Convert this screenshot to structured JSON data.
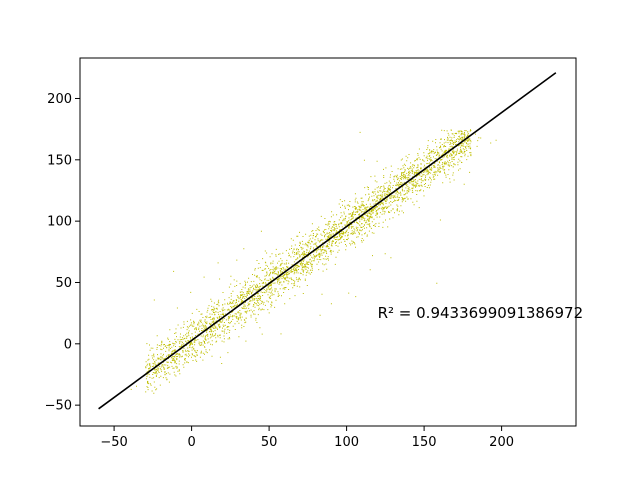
{
  "chart_data": {
    "type": "scatter",
    "title": "",
    "xlabel": "",
    "ylabel": "",
    "xlim": [
      -72,
      248
    ],
    "ylim": [
      -67,
      233
    ],
    "xticks": [
      -50,
      0,
      50,
      100,
      150,
      200
    ],
    "yticks": [
      -50,
      0,
      50,
      100,
      150,
      200
    ],
    "xtick_labels": [
      "−50",
      "0",
      "50",
      "100",
      "150",
      "200"
    ],
    "ytick_labels": [
      "−50",
      "0",
      "50",
      "100",
      "150",
      "200"
    ],
    "grid": false,
    "colors": {
      "points": "#bfbf00",
      "fit_line": "#000000"
    },
    "series": [
      {
        "kind": "scatter",
        "description": "dense cloud of small points along the diagonal",
        "x_range": [
          -40,
          200
        ],
        "y_range": [
          -40,
          175
        ],
        "approx_points": 30000
      },
      {
        "kind": "line",
        "description": "linear fit",
        "x": [
          -60,
          235
        ],
        "y": [
          -53,
          221
        ]
      }
    ],
    "annotations": [
      {
        "text": "R² = 0.9433699091386972",
        "x": 120,
        "y": 21
      }
    ]
  }
}
